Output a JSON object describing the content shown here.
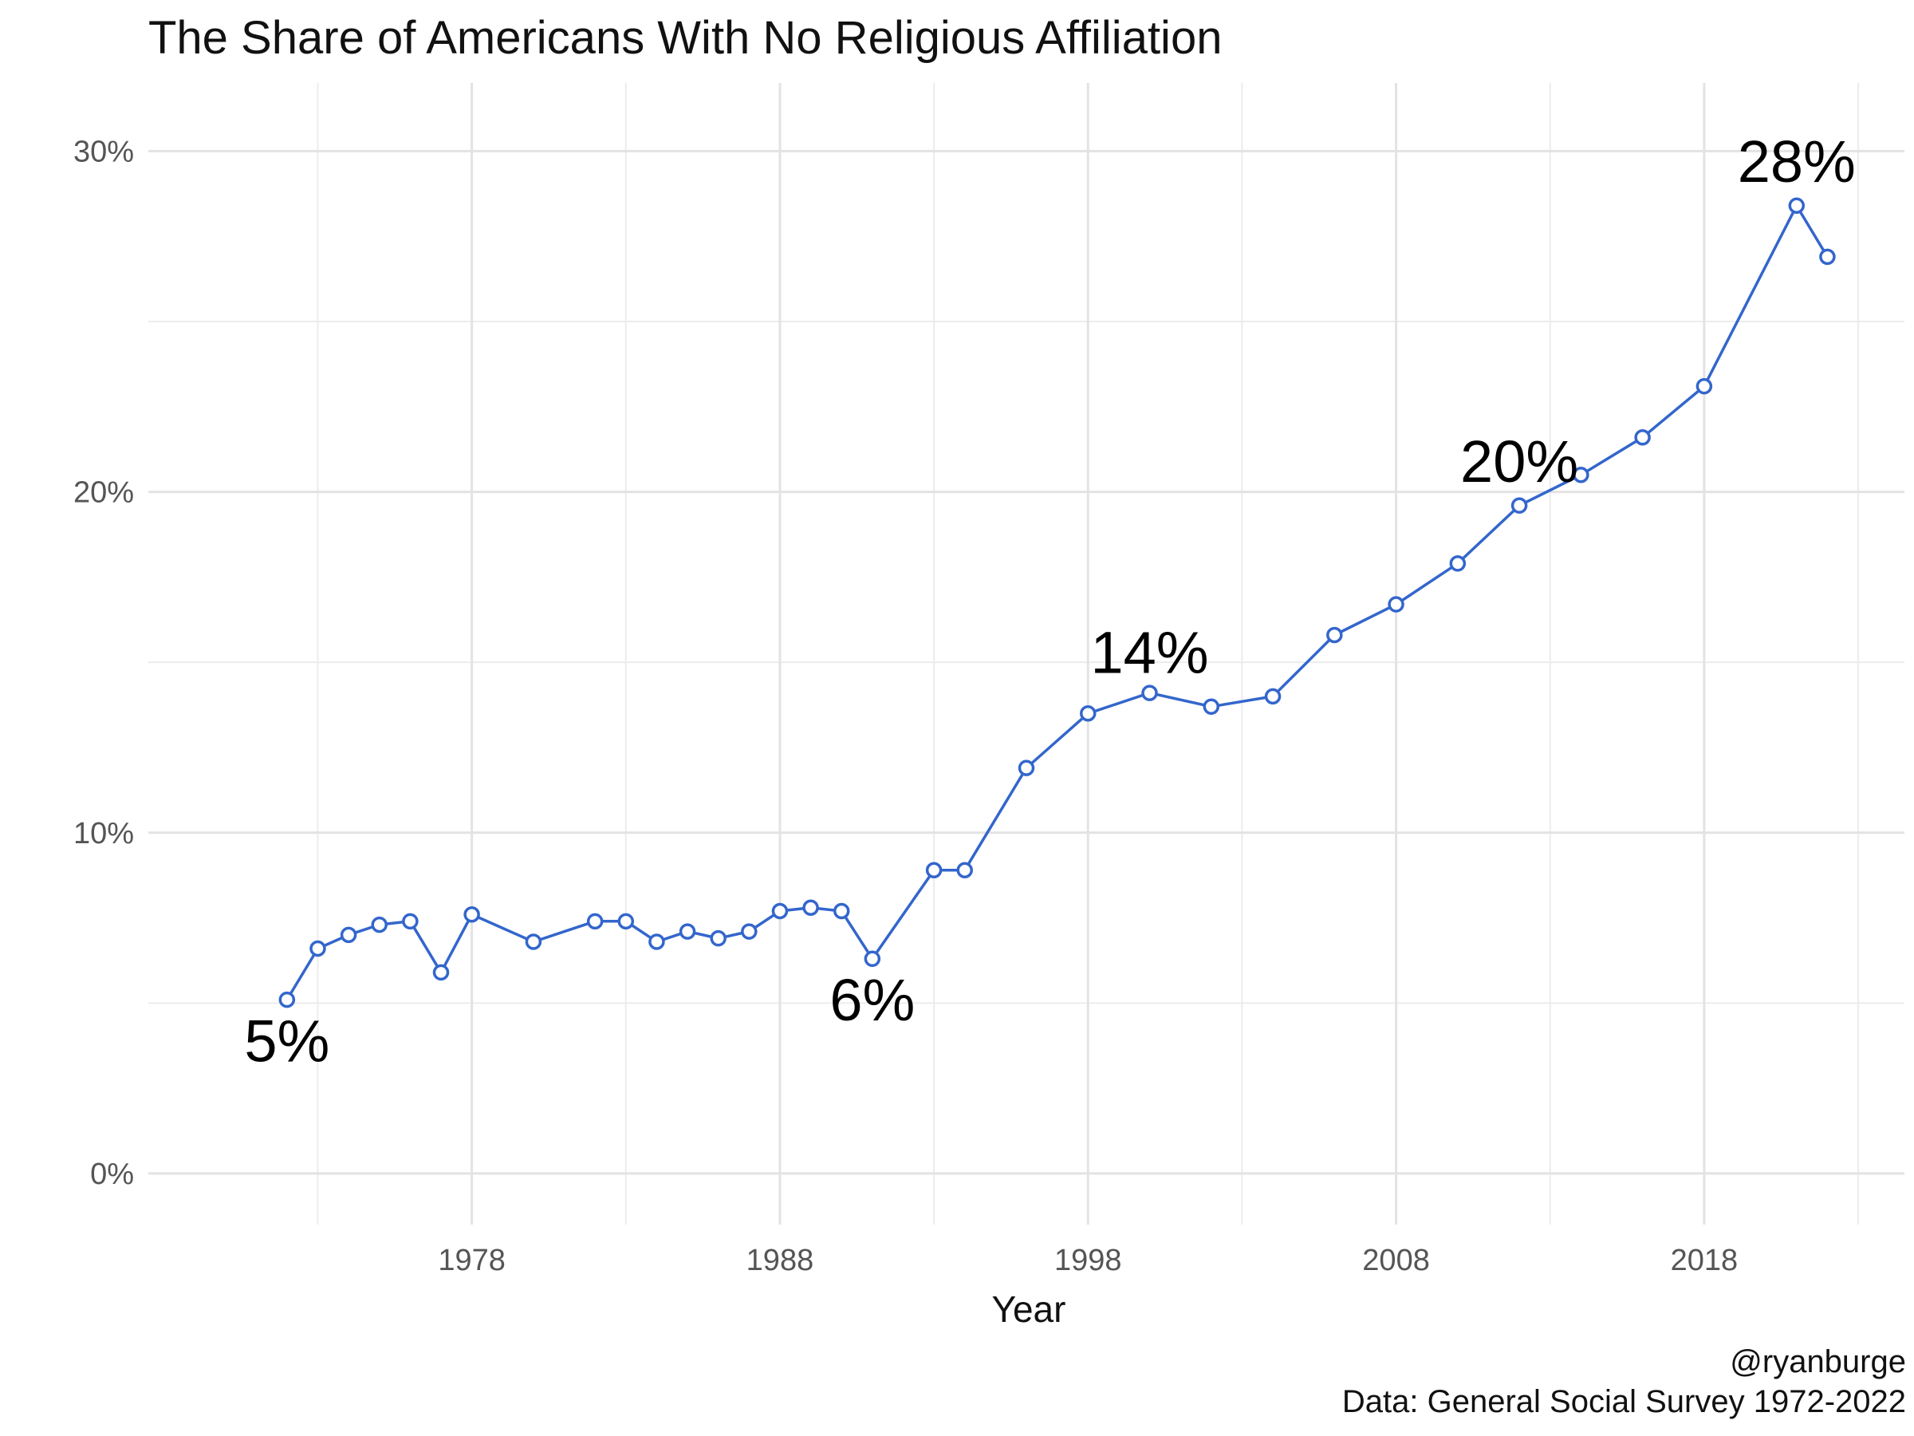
{
  "chart_data": {
    "type": "line",
    "title": "The Share of Americans With No Religious Affiliation",
    "xlabel": "Year",
    "ylabel": "",
    "xlim": [
      1967.5,
      2024.5
    ],
    "ylim": [
      -1.5,
      32
    ],
    "x_ticks": [
      1978,
      1988,
      1998,
      2008,
      2018
    ],
    "y_ticks": [
      0,
      10,
      20,
      30
    ],
    "y_tick_labels": [
      "0%",
      "10%",
      "20%",
      "30%"
    ],
    "x_tick_labels": [
      "1978",
      "1988",
      "1998",
      "2008",
      "2018"
    ],
    "grid": true,
    "color": "#3366cc",
    "series": [
      {
        "name": "No Religious Affiliation",
        "x": [
          1972,
          1973,
          1974,
          1975,
          1976,
          1977,
          1978,
          1980,
          1982,
          1983,
          1984,
          1985,
          1986,
          1987,
          1988,
          1989,
          1990,
          1991,
          1993,
          1994,
          1996,
          1998,
          2000,
          2002,
          2004,
          2006,
          2008,
          2010,
          2012,
          2014,
          2016,
          2018,
          2021,
          2022
        ],
        "values": [
          5.1,
          6.6,
          7.0,
          7.3,
          7.4,
          5.9,
          7.6,
          6.8,
          7.4,
          7.4,
          6.8,
          7.1,
          6.9,
          7.1,
          7.7,
          7.8,
          7.7,
          6.3,
          8.9,
          8.9,
          11.9,
          13.5,
          14.1,
          13.7,
          14.0,
          15.8,
          16.7,
          17.9,
          19.6,
          20.5,
          21.6,
          23.1,
          28.4,
          26.9
        ]
      }
    ],
    "annotations": [
      {
        "text": "5%",
        "x": 1972,
        "y": 3.9
      },
      {
        "text": "6%",
        "x": 1991,
        "y": 5.1
      },
      {
        "text": "14%",
        "x": 2000,
        "y": 15.3
      },
      {
        "text": "20%",
        "x": 2012,
        "y": 20.9
      },
      {
        "text": "28%",
        "x": 2021,
        "y": 29.7
      }
    ]
  },
  "caption": {
    "handle": "@ryanburge",
    "source": "Data: General Social Survey 1972-2022"
  }
}
